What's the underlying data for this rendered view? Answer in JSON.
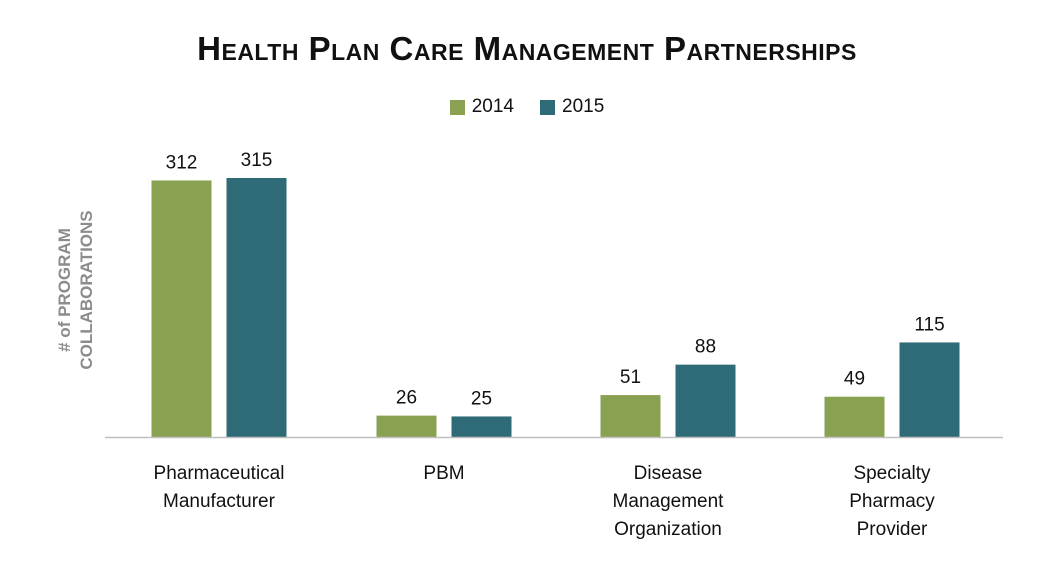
{
  "chart_data": {
    "type": "bar",
    "title": "Health Plan Care Management Partnerships",
    "ylabel_lines": [
      "# of PROGRAM",
      "COLLABORATIONS"
    ],
    "categories": [
      [
        "Pharmaceutical",
        "Manufacturer"
      ],
      [
        "PBM"
      ],
      [
        "Disease",
        "Management",
        "Organization"
      ],
      [
        "Specialty",
        "Pharmacy",
        "Provider"
      ]
    ],
    "series": [
      {
        "name": "2014",
        "color": "#8aa152",
        "values": [
          312,
          26,
          51,
          49
        ]
      },
      {
        "name": "2015",
        "color": "#2e6b77",
        "values": [
          315,
          25,
          88,
          115
        ]
      }
    ],
    "ylim": [
      0,
      315
    ],
    "grid": false,
    "legend_position": "top-center"
  }
}
